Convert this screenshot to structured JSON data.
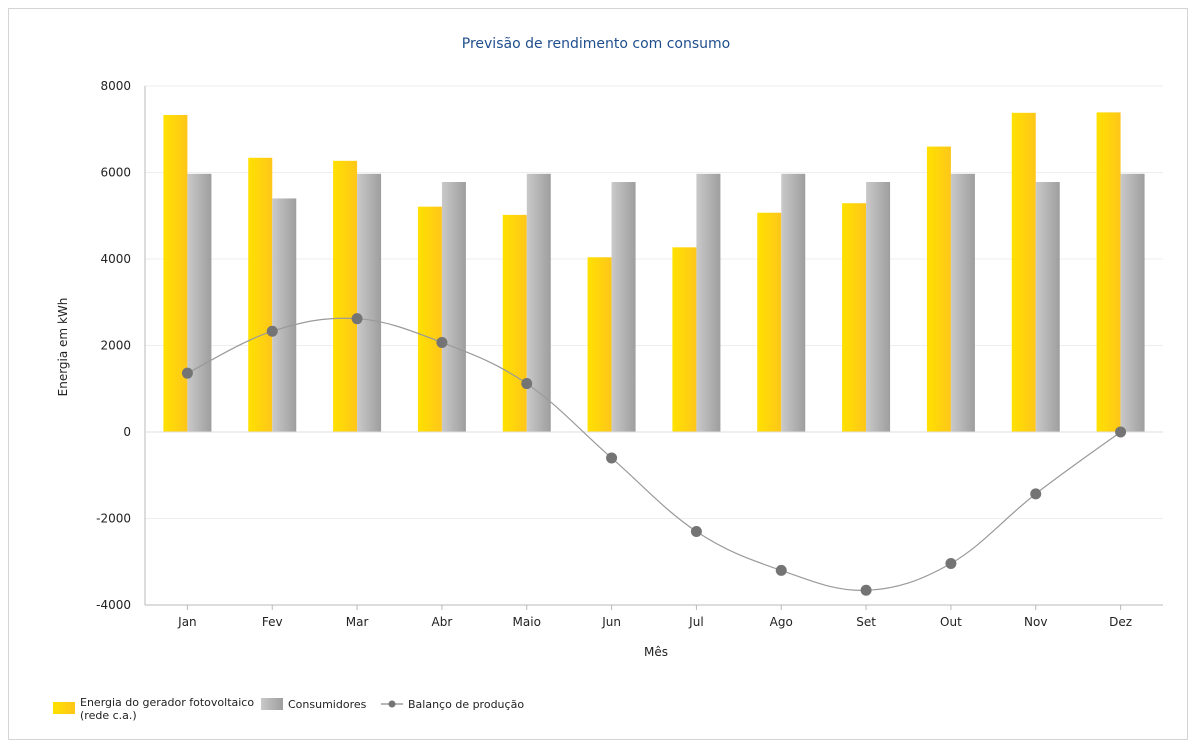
{
  "chart_data": {
    "type": "bar",
    "title": "Previsão de rendimento com consumo",
    "xlabel": "Mês",
    "ylabel": "Energia em kWh",
    "ylim": [
      -4000,
      8000
    ],
    "yticks": [
      8000,
      6000,
      4000,
      2000,
      0,
      -2000,
      -4000
    ],
    "grid": true,
    "legend_position": "bottom-left",
    "categories": [
      "Jan",
      "Fev",
      "Mar",
      "Abr",
      "Maio",
      "Jun",
      "Jul",
      "Ago",
      "Set",
      "Out",
      "Nov",
      "Dez"
    ],
    "series": [
      {
        "name": "Energia do gerador fotovoltaico (rede c.a.)",
        "name_lines": [
          "Energia do gerador fotovoltaico",
          "(rede c.a.)"
        ],
        "type": "bar",
        "color": "#ffd21a",
        "values": [
          7330,
          6340,
          6270,
          5210,
          5020,
          4040,
          4270,
          5070,
          5290,
          6600,
          7380,
          7390
        ]
      },
      {
        "name": "Consumidores",
        "type": "bar",
        "color": "#b5b5b5",
        "values": [
          5970,
          5400,
          5970,
          5780,
          5970,
          5780,
          5970,
          5970,
          5780,
          5970,
          5780,
          5970
        ]
      },
      {
        "name": "Balanço de produção",
        "type": "line",
        "color": "#747474",
        "values": [
          1360,
          2330,
          2620,
          2070,
          1120,
          -600,
          -2300,
          -3200,
          -3660,
          -3040,
          -1430,
          0
        ]
      }
    ]
  }
}
